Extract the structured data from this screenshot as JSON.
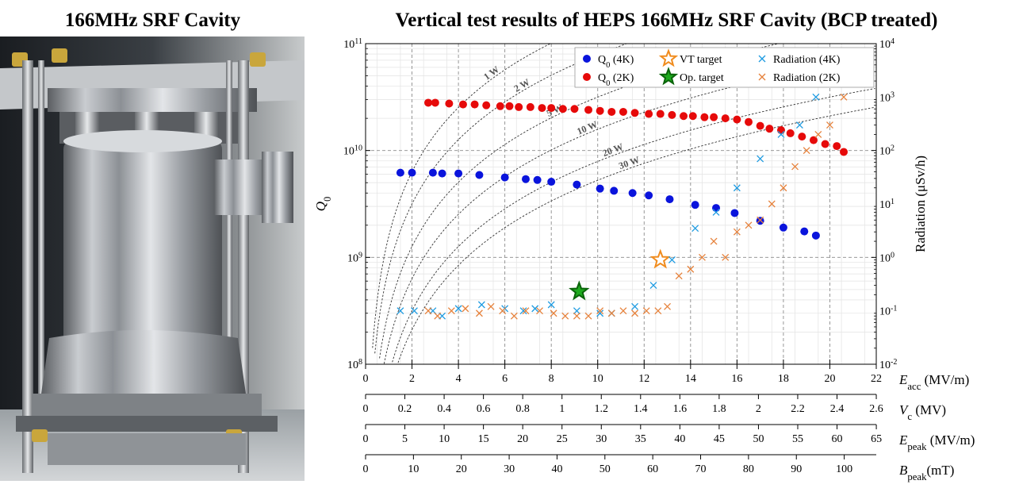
{
  "photo": {
    "title": "166MHz SRF Cavity"
  },
  "chart_data": {
    "type": "scatter",
    "title": "Vertical test results of HEPS 166MHz SRF Cavity (BCP treated)",
    "x_axes": [
      {
        "label_main": "E",
        "label_sub": "acc",
        "label_unit": " (MV/m)",
        "ticks": [
          "0",
          "2",
          "4",
          "6",
          "8",
          "10",
          "12",
          "14",
          "16",
          "18",
          "20",
          "22"
        ],
        "values": [
          0,
          2,
          4,
          6,
          8,
          10,
          12,
          14,
          16,
          18,
          20,
          22
        ]
      },
      {
        "label_main": "V",
        "label_sub": "c",
        "label_unit": " (MV)",
        "ticks": [
          "0",
          "0.2",
          "0.4",
          "0.6",
          "0.8",
          "1",
          "1.2",
          "1.4",
          "1.6",
          "1.8",
          "2",
          "2.2",
          "2.4",
          "2.6"
        ],
        "values": [
          0,
          0.2,
          0.4,
          0.6,
          0.8,
          1,
          1.2,
          1.4,
          1.6,
          1.8,
          2,
          2.2,
          2.4,
          2.6
        ]
      },
      {
        "label_main": "E",
        "label_sub": "peak",
        "label_unit": " (MV/m)",
        "ticks": [
          "0",
          "5",
          "10",
          "15",
          "20",
          "25",
          "30",
          "35",
          "40",
          "45",
          "50",
          "55",
          "60",
          "65"
        ],
        "values": [
          0,
          5,
          10,
          15,
          20,
          25,
          30,
          35,
          40,
          45,
          50,
          55,
          60,
          65
        ]
      },
      {
        "label_main": "B",
        "label_sub": "peak",
        "label_unit": "(mT)",
        "ticks": [
          "0",
          "10",
          "20",
          "30",
          "40",
          "50",
          "60",
          "70",
          "80",
          "90",
          "100"
        ],
        "values": [
          0,
          10,
          20,
          30,
          40,
          50,
          60,
          70,
          80,
          90,
          100
        ]
      }
    ],
    "scales": {
      "eacc_per_vc": 8.462,
      "eacc_per_epeak": 0.3385,
      "eacc_per_bpeak": 0.2062
    },
    "xlim": [
      0,
      22
    ],
    "y_left": {
      "label_main": "Q",
      "label_sub": "0",
      "scale": "log",
      "lim": [
        100000000,
        100000000000
      ],
      "ticks": [
        {
          "base": "10",
          "exp": "8",
          "value": 100000000
        },
        {
          "base": "10",
          "exp": "9",
          "value": 1000000000
        },
        {
          "base": "10",
          "exp": "10",
          "value": 10000000000
        },
        {
          "base": "10",
          "exp": "11",
          "value": 100000000000
        }
      ]
    },
    "y_right": {
      "label": "Radiation (μSv/h)",
      "scale": "log",
      "lim": [
        0.01,
        10000
      ],
      "ticks": [
        {
          "base": "10",
          "exp": "-2",
          "value": 0.01
        },
        {
          "base": "10",
          "exp": "-1",
          "value": 0.1
        },
        {
          "base": "10",
          "exp": "0",
          "value": 1
        },
        {
          "base": "10",
          "exp": "1",
          "value": 10
        },
        {
          "base": "10",
          "exp": "2",
          "value": 100
        },
        {
          "base": "10",
          "exp": "3",
          "value": 1000
        },
        {
          "base": "10",
          "exp": "4",
          "value": 10000
        }
      ]
    },
    "legend": {
      "placement": "top-right",
      "entries": [
        {
          "label_main": "Q",
          "label_sub": "0",
          "label_tail": " (4K)",
          "marker": "dot",
          "color": "#0a14dc"
        },
        {
          "label_main": "Q",
          "label_sub": "0",
          "label_tail": " (2K)",
          "marker": "dot",
          "color": "#e60a0a"
        },
        {
          "label_main": "VT target",
          "label_sub": "",
          "label_tail": "",
          "marker": "star",
          "color": "#ffffff",
          "stroke": "#f08c1e"
        },
        {
          "label_main": "Op. target",
          "label_sub": "",
          "label_tail": "",
          "marker": "star",
          "color": "#1eaa1e",
          "stroke": "#0a640a"
        },
        {
          "label_main": "Radiation (4K)",
          "label_sub": "",
          "label_tail": "",
          "marker": "x",
          "color": "#1e9be1"
        },
        {
          "label_main": "Radiation (2K)",
          "label_sub": "",
          "label_tail": "",
          "marker": "x",
          "color": "#e6823c"
        }
      ]
    },
    "series": [
      {
        "name": "Q0 (4K)",
        "axis": "left",
        "marker": "dot",
        "color": "#0a14dc",
        "x": [
          1.5,
          2.0,
          2.9,
          3.3,
          4.0,
          4.9,
          6.0,
          6.9,
          7.4,
          8.0,
          9.1,
          10.1,
          10.7,
          11.5,
          12.2,
          13.1,
          14.2,
          15.1,
          15.9,
          17.0,
          18.0,
          18.9,
          19.4
        ],
        "y": [
          6200000000.0,
          6200000000.0,
          6200000000.0,
          6100000000.0,
          6100000000.0,
          5900000000.0,
          5600000000.0,
          5400000000.0,
          5300000000.0,
          5100000000.0,
          4800000000.0,
          4400000000.0,
          4200000000.0,
          4000000000.0,
          3800000000.0,
          3500000000.0,
          3100000000.0,
          2900000000.0,
          2600000000.0,
          2200000000.0,
          1900000000.0,
          1750000000.0,
          1600000000.0
        ]
      },
      {
        "name": "Q0 (2K)",
        "axis": "left",
        "marker": "dot",
        "color": "#e60a0a",
        "x": [
          2.7,
          3.0,
          3.6,
          4.2,
          4.7,
          5.2,
          5.8,
          6.2,
          6.6,
          7.1,
          7.6,
          8.0,
          8.5,
          9.0,
          9.6,
          10.1,
          10.6,
          11.1,
          11.6,
          12.2,
          12.7,
          13.2,
          13.7,
          14.1,
          14.6,
          15.0,
          15.5,
          16.0,
          16.5,
          17.0,
          17.4,
          17.9,
          18.3,
          18.8,
          19.3,
          19.8,
          20.3,
          20.6
        ],
        "y": [
          28000000000.0,
          28000000000.0,
          27500000000.0,
          27000000000.0,
          27000000000.0,
          26500000000.0,
          26000000000.0,
          26000000000.0,
          25500000000.0,
          25500000000.0,
          25000000000.0,
          25000000000.0,
          24500000000.0,
          24500000000.0,
          24000000000.0,
          23500000000.0,
          23000000000.0,
          23000000000.0,
          22500000000.0,
          22000000000.0,
          22000000000.0,
          21500000000.0,
          21000000000.0,
          21000000000.0,
          20500000000.0,
          20500000000.0,
          20000000000.0,
          19500000000.0,
          18500000000.0,
          17000000000.0,
          16000000000.0,
          15500000000.0,
          14500000000.0,
          13500000000.0,
          12500000000.0,
          11500000000.0,
          11000000000.0,
          9700000000.0
        ]
      },
      {
        "name": "VT target",
        "axis": "left",
        "marker": "star",
        "color": "#ffffff",
        "stroke": "#f08c1e",
        "x": [
          12.7
        ],
        "y": [
          950000000.0
        ]
      },
      {
        "name": "Op. target",
        "axis": "left",
        "marker": "star",
        "color": "#1eaa1e",
        "stroke": "#0a640a",
        "x": [
          9.2
        ],
        "y": [
          480000000.0
        ]
      },
      {
        "name": "Radiation (4K)",
        "axis": "right",
        "marker": "x",
        "color": "#1e9be1",
        "x": [
          1.5,
          2.1,
          2.9,
          3.3,
          4.0,
          5.0,
          6.0,
          6.8,
          7.3,
          8.0,
          9.1,
          10.1,
          10.6,
          11.6,
          12.4,
          13.2,
          14.2,
          15.1,
          16.0,
          17.0,
          17.9,
          18.7,
          19.4
        ],
        "y": [
          0.1,
          0.1,
          0.1,
          0.08,
          0.11,
          0.13,
          0.11,
          0.1,
          0.11,
          0.13,
          0.1,
          0.09,
          0.09,
          0.12,
          0.3,
          0.9,
          3.5,
          7,
          20,
          70,
          200,
          300,
          1000
        ]
      },
      {
        "name": "Radiation (2K)",
        "axis": "right",
        "marker": "x",
        "color": "#e6823c",
        "x": [
          2.7,
          3.1,
          3.7,
          4.3,
          4.9,
          5.4,
          5.9,
          6.4,
          6.9,
          7.5,
          8.1,
          8.6,
          9.1,
          9.6,
          10.1,
          10.6,
          11.1,
          11.6,
          12.1,
          12.6,
          13.0,
          13.5,
          14.0,
          14.5,
          15.0,
          15.5,
          16.0,
          16.5,
          17.0,
          17.5,
          18.0,
          18.5,
          19.0,
          19.5,
          20.0,
          20.6
        ],
        "y": [
          0.1,
          0.08,
          0.1,
          0.11,
          0.09,
          0.12,
          0.1,
          0.08,
          0.1,
          0.1,
          0.09,
          0.08,
          0.08,
          0.08,
          0.1,
          0.09,
          0.1,
          0.09,
          0.1,
          0.1,
          0.12,
          0.45,
          0.6,
          1.0,
          2.0,
          1.0,
          3.0,
          4.0,
          5.0,
          10,
          20,
          50,
          100,
          200,
          300,
          1000
        ]
      }
    ],
    "iso_power": [
      {
        "label": "1 W",
        "P": 1,
        "label_x": 5.5
      },
      {
        "label": "2 W",
        "P": 2,
        "label_x": 6.8
      },
      {
        "label": "5 W",
        "P": 5,
        "label_x": 8.2
      },
      {
        "label": "10 W",
        "P": 10,
        "label_x": 9.6
      },
      {
        "label": "20 W",
        "P": 20,
        "label_x": 10.7
      },
      {
        "label": "30 W",
        "P": 30,
        "label_x": 11.4
      }
    ],
    "iso_power_k": 1580000000.0
  }
}
